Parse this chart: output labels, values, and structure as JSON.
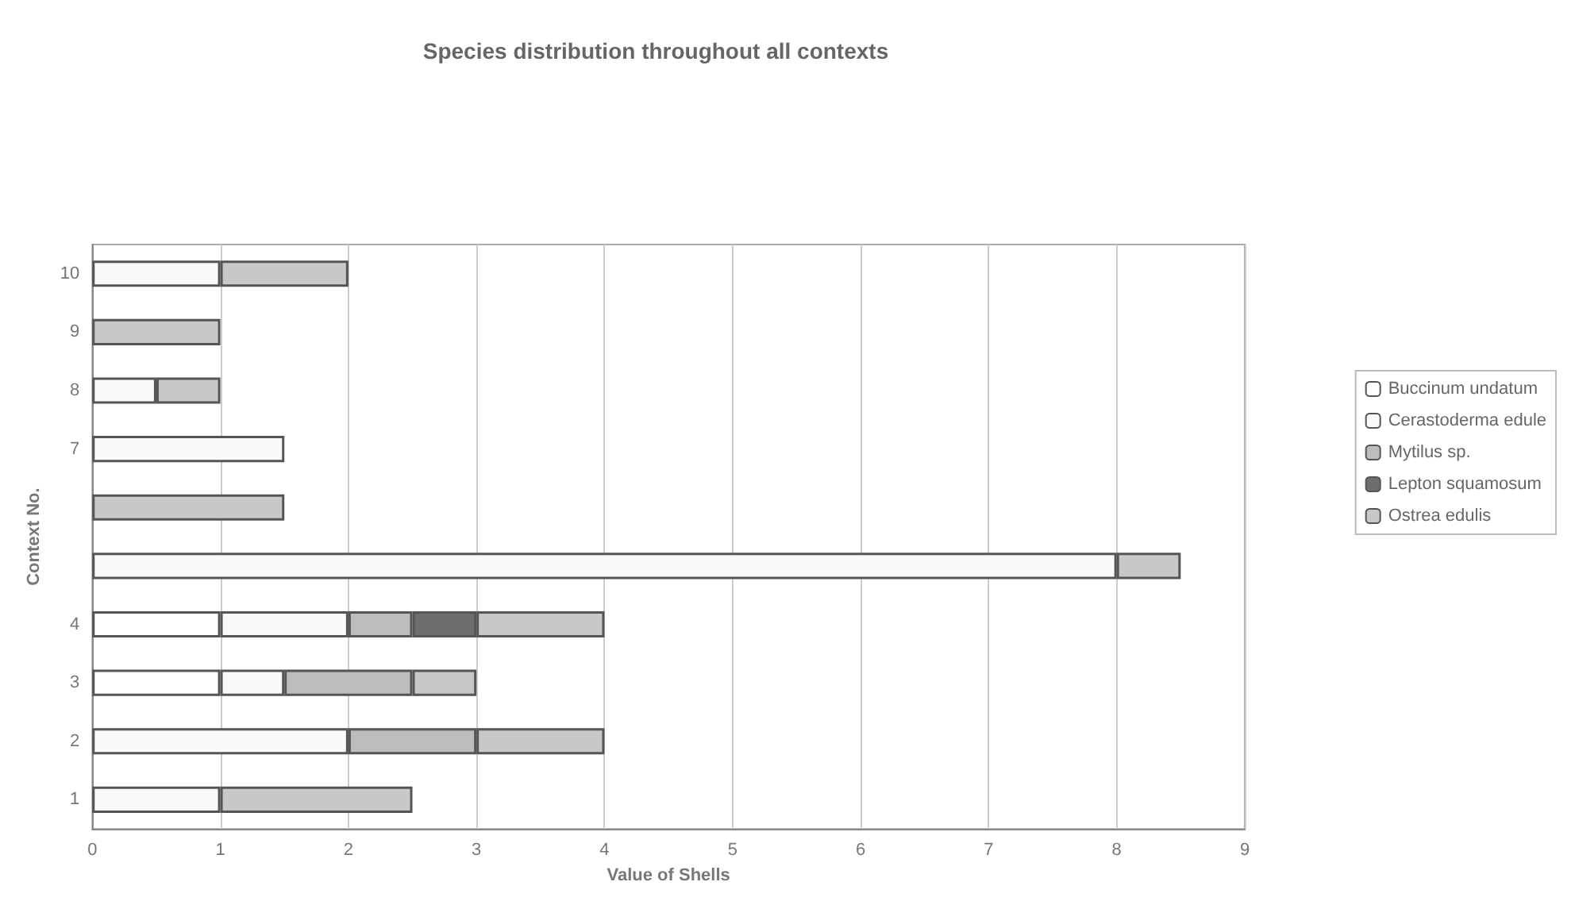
{
  "chart_data": {
    "type": "bar",
    "orientation": "horizontal",
    "stacked": true,
    "title": "Species distribution throughout all contexts",
    "xlabel": "Value of Shells",
    "ylabel": "Context No.",
    "categories": [
      "10",
      "9",
      "8",
      "7",
      null,
      null,
      "4",
      "3",
      "2",
      "1"
    ],
    "series": [
      {
        "name": "Buccinum undatum",
        "color": "#ffffff",
        "values": [
          null,
          null,
          null,
          null,
          null,
          null,
          1,
          1,
          null,
          null
        ]
      },
      {
        "name": "Cerastoderma edule",
        "color": "#fafafa",
        "values": [
          1,
          null,
          0.5,
          1.5,
          null,
          8,
          1,
          0.5,
          2,
          1
        ]
      },
      {
        "name": "Mytilus sp.",
        "color": "#bdbdbd",
        "values": [
          null,
          null,
          null,
          null,
          null,
          null,
          0.5,
          1,
          1,
          null
        ]
      },
      {
        "name": "Lepton squamosum",
        "color": "#6e6e6e",
        "values": [
          null,
          null,
          null,
          null,
          null,
          null,
          0.5,
          null,
          null,
          null
        ]
      },
      {
        "name": "Ostrea edulis",
        "color": "#c8c8c8",
        "values": [
          1,
          1,
          0.5,
          null,
          1.5,
          0.5,
          1,
          0.5,
          1,
          1.5
        ]
      }
    ],
    "xlim": [
      0,
      9
    ],
    "xticks": [
      0,
      1,
      2,
      3,
      4,
      5,
      6,
      7,
      8,
      9
    ],
    "grid": "x",
    "legend": "right"
  }
}
